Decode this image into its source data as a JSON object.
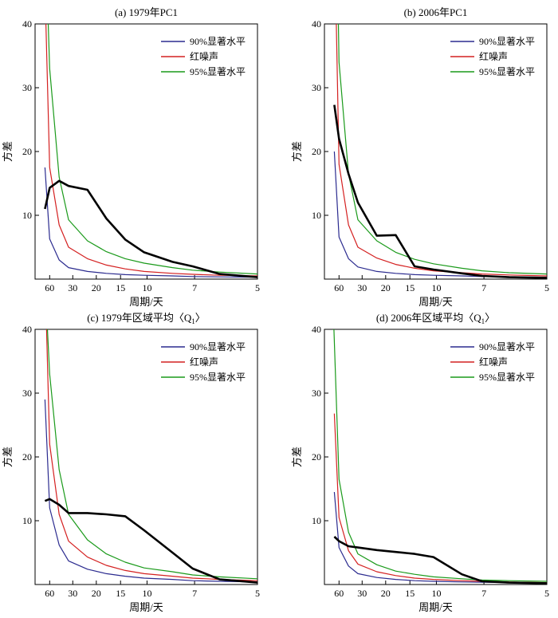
{
  "colors": {
    "sig90": "#2b2b8f",
    "red_noise": "#d42020",
    "sig95": "#1a9a1a",
    "spectrum": "#000000"
  },
  "axes_common": {
    "ylabel": "方差",
    "xlabel": "周期/天",
    "y_ticks": [
      10,
      20,
      30,
      40
    ],
    "x_tick_labels": [
      "60",
      "30",
      "20",
      "15",
      "10",
      "7",
      "5"
    ],
    "legend_placement": "top-right"
  },
  "chart_data": [
    {
      "type": "line",
      "title": "(a) 1979年PC1",
      "xlabel": "周期/天",
      "ylabel": "方差",
      "ylim": [
        0,
        40
      ],
      "x_ticks": [
        60,
        30,
        20,
        15,
        10,
        7,
        5
      ],
      "series": [
        {
          "name": "90%显著水平",
          "color_key": "sig90",
          "x": [
            80,
            60,
            40,
            30,
            20,
            15,
            12,
            10,
            8,
            7,
            6,
            5
          ],
          "y": [
            17.5,
            6.3,
            3.0,
            1.8,
            1.2,
            0.9,
            0.7,
            0.6,
            0.5,
            0.4,
            0.35,
            0.3
          ]
        },
        {
          "name": "红噪声",
          "color_key": "red_noise",
          "x": [
            75,
            60,
            40,
            30,
            20,
            15,
            12,
            10,
            8,
            7,
            6,
            5
          ],
          "y": [
            40,
            17.5,
            8.5,
            5.0,
            3.2,
            2.2,
            1.6,
            1.2,
            0.9,
            0.75,
            0.6,
            0.5
          ]
        },
        {
          "name": "95%显著水平",
          "color_key": "sig95",
          "x": [
            65,
            60,
            40,
            30,
            20,
            15,
            12,
            10,
            8,
            7,
            6,
            5
          ],
          "y": [
            40,
            33,
            16,
            9.3,
            6.0,
            4.3,
            3.2,
            2.5,
            1.8,
            1.4,
            1.1,
            0.8
          ]
        },
        {
          "name": "",
          "color_key": "spectrum",
          "x": [
            80,
            60,
            40,
            30,
            20,
            15,
            12,
            10,
            8,
            7,
            6,
            5
          ],
          "y": [
            11.0,
            14.3,
            15.4,
            14.6,
            14.0,
            9.5,
            6.2,
            4.2,
            2.7,
            2.0,
            0.8,
            0.3
          ]
        }
      ]
    },
    {
      "type": "line",
      "title": "(b) 2006年PC1",
      "xlabel": "周期/天",
      "ylabel": "方差",
      "ylim": [
        0,
        40
      ],
      "x_ticks": [
        60,
        30,
        20,
        15,
        10,
        7,
        5
      ],
      "series": [
        {
          "name": "90%显著水平",
          "color_key": "sig90",
          "x": [
            80,
            60,
            40,
            30,
            20,
            15,
            12,
            10,
            8,
            7,
            6,
            5
          ],
          "y": [
            20.0,
            6.6,
            3.2,
            1.9,
            1.2,
            0.9,
            0.7,
            0.6,
            0.5,
            0.4,
            0.35,
            0.3
          ]
        },
        {
          "name": "红噪声",
          "color_key": "red_noise",
          "x": [
            70,
            60,
            40,
            30,
            20,
            15,
            12,
            10,
            8,
            7,
            6,
            5
          ],
          "y": [
            40,
            18.0,
            8.5,
            5.0,
            3.3,
            2.3,
            1.7,
            1.3,
            1.0,
            0.8,
            0.65,
            0.5
          ]
        },
        {
          "name": "95%显著水平",
          "color_key": "sig95",
          "x": [
            62,
            60,
            40,
            30,
            20,
            15,
            12,
            10,
            8,
            7,
            6,
            5
          ],
          "y": [
            40,
            34,
            16.5,
            9.3,
            6.0,
            4.2,
            3.1,
            2.4,
            1.7,
            1.3,
            1.0,
            0.8
          ]
        },
        {
          "name": "",
          "color_key": "spectrum",
          "x": [
            80,
            60,
            40,
            30,
            20,
            15,
            12,
            10,
            8,
            7,
            6,
            5
          ],
          "y": [
            27.3,
            22.0,
            16.5,
            12.0,
            6.8,
            6.9,
            2.0,
            1.5,
            0.9,
            0.5,
            0.3,
            0.2
          ]
        }
      ]
    },
    {
      "type": "line",
      "title": "(c) 1979年区域平均〈Q",
      "title_subscript": "1",
      "title_close": "〉",
      "xlabel": "周期/天",
      "ylabel": "方差",
      "ylim": [
        0,
        40
      ],
      "x_ticks": [
        60,
        30,
        20,
        15,
        10,
        7,
        5
      ],
      "series": [
        {
          "name": "90%显著水平",
          "color_key": "sig90",
          "x": [
            80,
            60,
            40,
            30,
            20,
            15,
            12,
            10,
            8,
            7,
            6,
            5
          ],
          "y": [
            29.0,
            12.0,
            6.2,
            3.7,
            2.4,
            1.7,
            1.3,
            1.0,
            0.8,
            0.6,
            0.5,
            0.4
          ]
        },
        {
          "name": "红噪声",
          "color_key": "red_noise",
          "x": [
            72,
            60,
            40,
            30,
            20,
            15,
            12,
            10,
            8,
            7,
            6,
            5
          ],
          "y": [
            40,
            22.0,
            11.0,
            6.8,
            4.3,
            3.0,
            2.2,
            1.7,
            1.3,
            1.0,
            0.8,
            0.6
          ]
        },
        {
          "name": "95%显著水平",
          "color_key": "sig95",
          "x": [
            68,
            60,
            40,
            30,
            20,
            15,
            12,
            10,
            8,
            7,
            6,
            5
          ],
          "y": [
            40,
            33.0,
            18.0,
            11.0,
            7.0,
            4.8,
            3.5,
            2.6,
            2.0,
            1.5,
            1.2,
            0.9
          ]
        },
        {
          "name": "",
          "color_key": "spectrum",
          "x": [
            80,
            60,
            40,
            30,
            20,
            15,
            12,
            10,
            8,
            7,
            6,
            5
          ],
          "y": [
            13.1,
            13.4,
            12.5,
            11.2,
            11.2,
            11.0,
            10.7,
            8.5,
            5.0,
            2.5,
            0.8,
            0.3
          ]
        }
      ]
    },
    {
      "type": "line",
      "title": "(d) 2006年区域平均〈Q",
      "title_subscript": "1",
      "title_close": "〉",
      "xlabel": "周期/天",
      "ylabel": "方差",
      "ylim": [
        0,
        40
      ],
      "x_ticks": [
        60,
        30,
        20,
        15,
        10,
        7,
        5
      ],
      "series": [
        {
          "name": "90%显著水平",
          "color_key": "sig90",
          "x": [
            80,
            60,
            40,
            30,
            20,
            15,
            12,
            10,
            8,
            7,
            6,
            5
          ],
          "y": [
            14.5,
            5.8,
            2.9,
            1.7,
            1.1,
            0.8,
            0.6,
            0.5,
            0.4,
            0.35,
            0.3,
            0.25
          ]
        },
        {
          "name": "红噪声",
          "color_key": "red_noise",
          "x": [
            80,
            60,
            40,
            30,
            20,
            15,
            12,
            10,
            8,
            7,
            6,
            5
          ],
          "y": [
            26.8,
            10.5,
            5.3,
            3.2,
            2.0,
            1.4,
            1.0,
            0.8,
            0.6,
            0.5,
            0.4,
            0.3
          ]
        },
        {
          "name": "95%显著水平",
          "color_key": "sig95",
          "x": [
            82,
            60,
            40,
            30,
            20,
            15,
            12,
            10,
            8,
            7,
            6,
            5
          ],
          "y": [
            40,
            16.5,
            8.2,
            4.8,
            3.1,
            2.1,
            1.6,
            1.2,
            0.9,
            0.7,
            0.6,
            0.5
          ]
        },
        {
          "name": "",
          "color_key": "spectrum",
          "x": [
            80,
            60,
            40,
            30,
            20,
            15,
            12,
            10,
            8,
            7,
            6,
            5
          ],
          "y": [
            7.5,
            6.8,
            6.0,
            5.8,
            5.4,
            5.1,
            4.8,
            4.3,
            1.6,
            0.5,
            0.3,
            0.2
          ]
        }
      ]
    }
  ]
}
